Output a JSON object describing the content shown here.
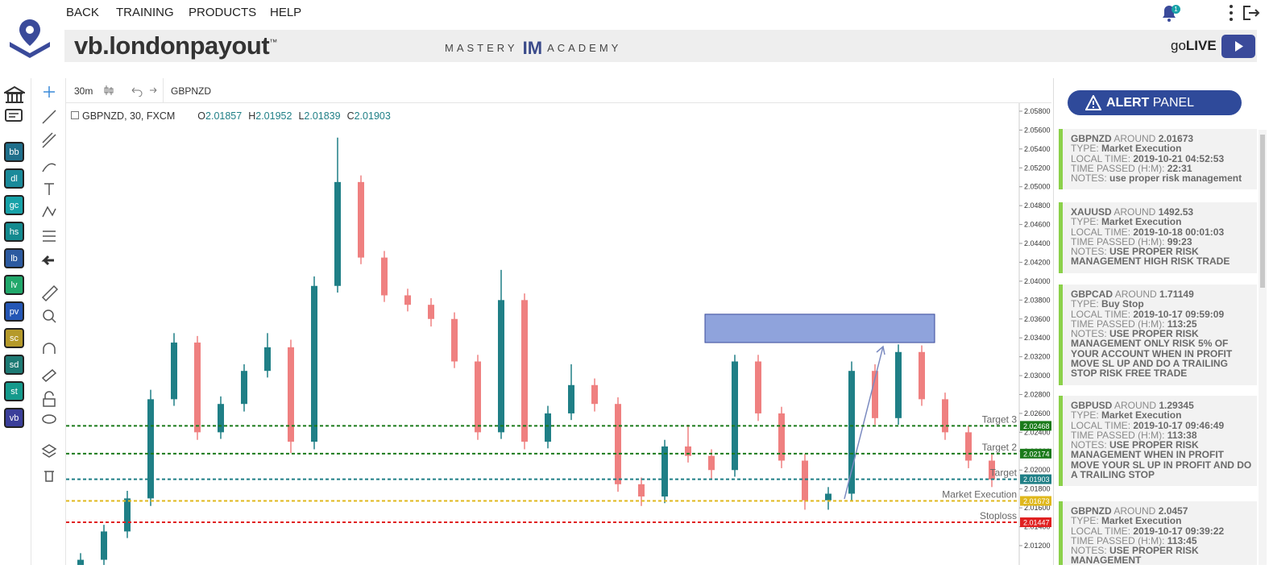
{
  "nav": {
    "links": [
      "BACK",
      "TRAINING",
      "PRODUCTS",
      "HELP"
    ],
    "notification_count": "1"
  },
  "brand": {
    "name": "vb.londonpayout",
    "mark": "™",
    "academy_left": "MASTERY",
    "academy_logo": "IM",
    "academy_right": "ACADEMY",
    "golive_light": "go",
    "golive_bold": "LIVE"
  },
  "sidebar": {
    "apps": [
      {
        "label": "bb",
        "color": "#1f6f8b"
      },
      {
        "label": "dl",
        "color": "#1a8a9a"
      },
      {
        "label": "gc",
        "color": "#17a2a8"
      },
      {
        "label": "hs",
        "color": "#138a8f"
      },
      {
        "label": "lb",
        "color": "#2c5aa0"
      },
      {
        "label": "lv",
        "color": "#21a86b"
      },
      {
        "label": "pv",
        "color": "#2456b5"
      },
      {
        "label": "sc",
        "color": "#b59a2a"
      },
      {
        "label": "sd",
        "color": "#1d7a74"
      },
      {
        "label": "st",
        "color": "#159a8c"
      },
      {
        "label": "vb",
        "color": "#3b3f9a"
      }
    ]
  },
  "toolbar": {
    "interval": "30m",
    "symbol": "GBPNZD"
  },
  "chart": {
    "type": "candlestick",
    "symbol": "GBPNZD, 30, FXCM",
    "ohlc": [
      {
        "key": "O",
        "value": 2.01857
      },
      {
        "key": "H",
        "value": 2.01952
      },
      {
        "key": "L",
        "value": 2.01839
      },
      {
        "key": "C",
        "value": 2.01903
      }
    ],
    "ylim": [
      2.00995,
      2.05885
    ],
    "yticks": [
      {
        "value": 2.058,
        "label": "2.05800"
      },
      {
        "value": 2.056,
        "label": "2.05600"
      },
      {
        "value": 2.054,
        "label": "2.05400"
      },
      {
        "value": 2.052,
        "label": "2.05200"
      },
      {
        "value": 2.05,
        "label": "2.05000"
      },
      {
        "value": 2.048,
        "label": "2.04800"
      },
      {
        "value": 2.046,
        "label": "2.04600"
      },
      {
        "value": 2.044,
        "label": "2.04400"
      },
      {
        "value": 2.042,
        "label": "2.04200"
      },
      {
        "value": 2.04,
        "label": "2.04000"
      },
      {
        "value": 2.038,
        "label": "2.03800"
      },
      {
        "value": 2.036,
        "label": "2.03600"
      },
      {
        "value": 2.034,
        "label": "2.03400"
      },
      {
        "value": 2.032,
        "label": "2.03200"
      },
      {
        "value": 2.03,
        "label": "2.03000"
      },
      {
        "value": 2.028,
        "label": "2.02800"
      },
      {
        "value": 2.026,
        "label": "2.02600"
      },
      {
        "value": 2.024,
        "label": "2.02400"
      },
      {
        "value": 2.022,
        "label": "2.02200"
      },
      {
        "value": 2.02,
        "label": "2.02000"
      },
      {
        "value": 2.018,
        "label": "2.01800"
      },
      {
        "value": 2.016,
        "label": "2.01600"
      },
      {
        "value": 2.014,
        "label": "2.01400"
      },
      {
        "value": 2.012,
        "label": "2.01200"
      }
    ],
    "up_color": "#1f7f86",
    "down_color": "#ef8080",
    "candles": [
      [
        2.0095,
        2.0112,
        2.0088,
        2.0105
      ],
      [
        2.0105,
        2.0142,
        2.0098,
        2.0135
      ],
      [
        2.0135,
        2.0178,
        2.0128,
        2.017
      ],
      [
        2.017,
        2.0285,
        2.0162,
        2.0275
      ],
      [
        2.0275,
        2.0345,
        2.0268,
        2.0335
      ],
      [
        2.0335,
        2.0342,
        2.0232,
        2.024
      ],
      [
        2.024,
        2.0278,
        2.0233,
        2.027
      ],
      [
        2.027,
        2.0312,
        2.0262,
        2.0305
      ],
      [
        2.0305,
        2.0345,
        2.0298,
        2.033
      ],
      [
        2.033,
        2.0338,
        2.0218,
        2.023
      ],
      [
        2.023,
        2.0405,
        2.0222,
        2.0395
      ],
      [
        2.0395,
        2.0552,
        2.0388,
        2.0505
      ],
      [
        2.0505,
        2.0512,
        2.0418,
        2.0425
      ],
      [
        2.0425,
        2.0432,
        2.0378,
        2.0385
      ],
      [
        2.0385,
        2.0392,
        2.0368,
        2.0375
      ],
      [
        2.0375,
        2.0382,
        2.0352,
        2.036
      ],
      [
        2.036,
        2.0367,
        2.0308,
        2.0315
      ],
      [
        2.0315,
        2.0322,
        2.0232,
        2.024
      ],
      [
        2.024,
        2.0412,
        2.0233,
        2.038
      ],
      [
        2.038,
        2.0387,
        2.0222,
        2.023
      ],
      [
        2.023,
        2.0268,
        2.0223,
        2.026
      ],
      [
        2.026,
        2.0312,
        2.0253,
        2.029
      ],
      [
        2.029,
        2.0297,
        2.0262,
        2.027
      ],
      [
        2.027,
        2.0277,
        2.0177,
        2.0185
      ],
      [
        2.0185,
        2.0192,
        2.0162,
        2.0172
      ],
      [
        2.0172,
        2.0232,
        2.0165,
        2.0225
      ],
      [
        2.0225,
        2.0248,
        2.0208,
        2.0215
      ],
      [
        2.0215,
        2.0222,
        2.019,
        2.02
      ],
      [
        2.02,
        2.0322,
        2.0193,
        2.0315
      ],
      [
        2.0315,
        2.0322,
        2.0252,
        2.026
      ],
      [
        2.026,
        2.0267,
        2.0202,
        2.021
      ],
      [
        2.021,
        2.0217,
        2.0158,
        2.0168
      ],
      [
        2.0168,
        2.0182,
        2.0158,
        2.0175
      ],
      [
        2.0175,
        2.0315,
        2.0168,
        2.0305
      ],
      [
        2.0305,
        2.0312,
        2.0248,
        2.0255
      ],
      [
        2.0255,
        2.0333,
        2.0248,
        2.0325
      ],
      [
        2.0325,
        2.0332,
        2.0268,
        2.0275
      ],
      [
        2.0275,
        2.0282,
        2.0232,
        2.024
      ],
      [
        2.024,
        2.0247,
        2.0202,
        2.021
      ],
      [
        2.021,
        2.0218,
        2.0182,
        2.019
      ]
    ],
    "zone": {
      "top": 2.0365,
      "bottom": 2.0335,
      "color": "#8fa3dc"
    },
    "levels": [
      {
        "name": "Target 3",
        "value": 2.02468,
        "color": "#1a7a1a"
      },
      {
        "name": "Target 2",
        "value": 2.02174,
        "color": "#1a7a1a"
      },
      {
        "name": "Target",
        "value": 2.01903,
        "color": "#1f7f86"
      },
      {
        "name": "Market Execution",
        "value": 2.01673,
        "color": "#e0b81c"
      },
      {
        "name": "Stoploss",
        "value": 2.01447,
        "color": "#e02020"
      }
    ]
  },
  "alert_panel": {
    "title_bold": "ALERT",
    "title_light": "PANEL",
    "around": "AROUND",
    "field_labels": [
      "TYPE:",
      "LOCAL TIME:",
      "TIME PASSED (H:M):",
      "NOTES:"
    ],
    "alerts": [
      {
        "symbol": "GBPNZD",
        "level": "2.01673",
        "type": "Market Execution",
        "local_time": "2019-10-21 04:52:53",
        "time_passed": "22:31",
        "notes": "use proper risk management"
      },
      {
        "symbol": "XAUUSD",
        "level": "1492.53",
        "type": "Market Execution",
        "local_time": "2019-10-18 00:01:03",
        "time_passed": "99:23",
        "notes": "USE PROPER RISK MANAGEMENT HIGH RISK TRADE"
      },
      {
        "symbol": "GBPCAD",
        "level": "1.71149",
        "type": "Buy Stop",
        "local_time": "2019-10-17 09:59:09",
        "time_passed": "113:25",
        "notes": "USE PROPER RISK MANAGEMENT ONLY RISK 5% OF YOUR ACCOUNT WHEN IN PROFIT MOVE SL UP AND DO A TRAILING STOP RISK FREE TRADE"
      },
      {
        "symbol": "GBPUSD",
        "level": "1.29345",
        "type": "Market Execution",
        "local_time": "2019-10-17 09:46:49",
        "time_passed": "113:38",
        "notes": "USE PROPER RISK MANAGEMENT WHEN IN PROFIT MOVE YOUR SL UP IN PROFIT AND DO A TRAILING STOP"
      },
      {
        "symbol": "GBPNZD",
        "level": "2.0457",
        "type": "Market Execution",
        "local_time": "2019-10-17 09:39:22",
        "time_passed": "113:45",
        "notes": "USE PROPER RISK MANAGEMENT"
      }
    ]
  }
}
